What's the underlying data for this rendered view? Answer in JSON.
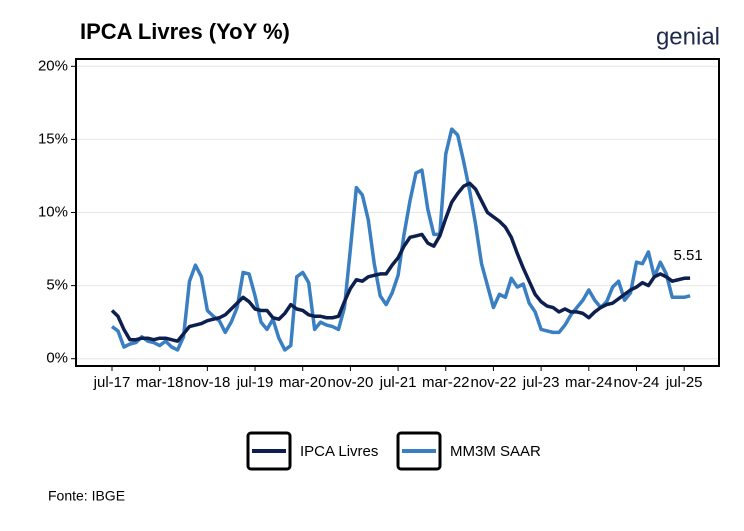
{
  "chart_data": {
    "type": "line",
    "title": "IPCA Livres (YoY %)",
    "logo": "genial",
    "source": "Fonte: IBGE",
    "annotation": "5.51",
    "categories": [
      "jul-17",
      null,
      null,
      null,
      null,
      null,
      null,
      null,
      "mar-18",
      null,
      null,
      null,
      null,
      null,
      null,
      null,
      "nov-18",
      null,
      null,
      null,
      null,
      null,
      null,
      null,
      "jul-19",
      null,
      null,
      null,
      null,
      null,
      null,
      null,
      "mar-20",
      null,
      null,
      null,
      null,
      null,
      null,
      null,
      "nov-20",
      null,
      null,
      null,
      null,
      null,
      null,
      null,
      "jul-21",
      null,
      null,
      null,
      null,
      null,
      null,
      null,
      "mar-22",
      null,
      null,
      null,
      null,
      null,
      null,
      null,
      "nov-22",
      null,
      null,
      null,
      null,
      null,
      null,
      null,
      "jul-23",
      null,
      null,
      null,
      null,
      null,
      null,
      null,
      "mar-24",
      null,
      null,
      null,
      null,
      null,
      null,
      null,
      "nov-24",
      null,
      null,
      null,
      null,
      null,
      null,
      null,
      "jul-25",
      null
    ],
    "series": [
      {
        "name": "IPCA Livres",
        "color": "#0d1f4f",
        "values": [
          3.3,
          2.9,
          2.0,
          1.3,
          1.3,
          1.4,
          1.4,
          1.3,
          1.4,
          1.4,
          1.3,
          1.2,
          1.7,
          2.2,
          2.3,
          2.4,
          2.6,
          2.7,
          2.8,
          3.0,
          3.4,
          3.8,
          4.2,
          3.9,
          3.4,
          3.3,
          3.3,
          2.8,
          2.7,
          3.1,
          3.7,
          3.4,
          3.3,
          3.0,
          2.9,
          2.9,
          2.8,
          2.8,
          2.9,
          3.9,
          4.8,
          5.4,
          5.3,
          5.6,
          5.7,
          5.8,
          5.8,
          6.4,
          6.9,
          7.7,
          8.3,
          8.4,
          8.5,
          7.9,
          7.7,
          8.4,
          9.6,
          10.7,
          11.3,
          11.8,
          12.0,
          11.6,
          10.8,
          10.0,
          9.7,
          9.4,
          9.0,
          8.3,
          7.2,
          6.2,
          5.3,
          4.4,
          3.9,
          3.6,
          3.5,
          3.2,
          3.4,
          3.2,
          3.2,
          3.1,
          2.8,
          3.2,
          3.5,
          3.7,
          3.8,
          4.1,
          4.4,
          4.7,
          4.9,
          5.2,
          5.0,
          5.6,
          5.8,
          5.6,
          5.3,
          5.4,
          5.5,
          5.51
        ]
      },
      {
        "name": "MM3M SAAR",
        "color": "#3a7fc1",
        "values": [
          2.2,
          1.9,
          0.8,
          1.0,
          1.1,
          1.5,
          1.2,
          1.1,
          0.9,
          1.2,
          0.8,
          0.6,
          1.5,
          5.3,
          6.4,
          5.6,
          3.3,
          2.9,
          2.6,
          1.8,
          2.5,
          3.5,
          5.9,
          5.8,
          4.3,
          2.5,
          2.0,
          2.7,
          1.4,
          0.6,
          0.9,
          5.6,
          5.9,
          5.2,
          2.0,
          2.5,
          2.3,
          2.2,
          2.0,
          3.5,
          7.5,
          11.7,
          11.2,
          9.5,
          6.5,
          4.3,
          3.7,
          4.5,
          5.7,
          8.5,
          10.8,
          12.7,
          12.9,
          10.2,
          8.5,
          8.5,
          14.0,
          15.7,
          15.3,
          13.5,
          11.5,
          9.2,
          6.5,
          5.0,
          3.5,
          4.4,
          4.2,
          5.5,
          4.9,
          5.1,
          3.8,
          3.2,
          2.0,
          1.9,
          1.8,
          1.8,
          2.3,
          3.0,
          3.5,
          4.0,
          4.7,
          4.0,
          3.5,
          3.9,
          4.9,
          5.3,
          4.0,
          4.5,
          6.6,
          6.5,
          7.3,
          5.6,
          6.6,
          5.8,
          4.2,
          4.2,
          4.2,
          4.3
        ]
      }
    ],
    "ylim": [
      -0.5,
      20.5
    ],
    "yticks": [
      {
        "value": 0,
        "label": "0%"
      },
      {
        "value": 5,
        "label": "5%"
      },
      {
        "value": 10,
        "label": "10%"
      },
      {
        "value": 15,
        "label": "15%"
      },
      {
        "value": 20,
        "label": "20%"
      }
    ],
    "grid": true
  }
}
